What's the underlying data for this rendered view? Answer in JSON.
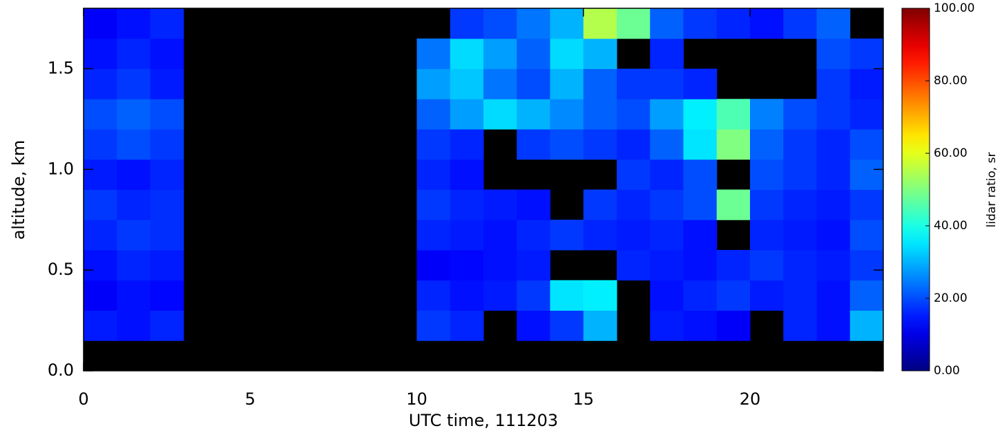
{
  "chart_data": {
    "type": "heatmap",
    "xlabel": "UTC time, 111203",
    "ylabel": "altitude, km",
    "colorbar_label": "lidar ratio, sr",
    "colormap": "jet",
    "missing_color": "#000000",
    "xbins": [
      0,
      1,
      2,
      3,
      4,
      5,
      6,
      7,
      8,
      9,
      10,
      11,
      12,
      13,
      14,
      15,
      16,
      17,
      18,
      19,
      20,
      21,
      22,
      23,
      24
    ],
    "ybins": [
      0,
      0.15,
      0.3,
      0.45,
      0.6,
      0.75,
      0.9,
      1.05,
      1.2,
      1.35,
      1.5,
      1.65,
      1.8
    ],
    "z": [
      [
        null,
        null,
        null,
        null,
        null,
        null,
        null,
        null,
        null,
        null,
        null,
        null,
        null,
        null,
        null,
        null,
        null,
        null,
        null,
        null,
        null,
        null,
        null,
        null
      ],
      [
        15,
        14,
        16,
        null,
        null,
        null,
        null,
        null,
        null,
        null,
        18,
        16,
        null,
        14,
        18,
        30,
        null,
        15,
        14,
        12,
        null,
        16,
        14,
        30
      ],
      [
        12,
        14,
        13,
        null,
        null,
        null,
        null,
        null,
        null,
        null,
        16,
        14,
        15,
        18,
        35,
        36,
        null,
        14,
        16,
        18,
        15,
        16,
        14,
        22
      ],
      [
        14,
        16,
        15,
        null,
        null,
        null,
        null,
        null,
        null,
        null,
        12,
        13,
        14,
        15,
        null,
        null,
        16,
        15,
        14,
        16,
        18,
        16,
        15,
        18
      ],
      [
        16,
        18,
        17,
        null,
        null,
        null,
        null,
        null,
        null,
        null,
        16,
        15,
        14,
        16,
        18,
        16,
        15,
        16,
        14,
        null,
        16,
        15,
        14,
        20
      ],
      [
        18,
        16,
        17,
        null,
        null,
        null,
        null,
        null,
        null,
        null,
        18,
        16,
        15,
        14,
        null,
        18,
        16,
        18,
        20,
        48,
        18,
        16,
        15,
        18
      ],
      [
        15,
        14,
        16,
        null,
        null,
        null,
        null,
        null,
        null,
        null,
        16,
        14,
        null,
        null,
        null,
        null,
        18,
        16,
        20,
        null,
        20,
        18,
        16,
        22
      ],
      [
        18,
        20,
        18,
        null,
        null,
        null,
        null,
        null,
        null,
        null,
        18,
        16,
        null,
        18,
        20,
        18,
        16,
        22,
        35,
        50,
        22,
        18,
        16,
        20
      ],
      [
        20,
        22,
        20,
        null,
        null,
        null,
        null,
        null,
        null,
        null,
        22,
        28,
        34,
        30,
        26,
        22,
        20,
        28,
        36,
        45,
        25,
        20,
        18,
        16
      ],
      [
        16,
        18,
        15,
        null,
        null,
        null,
        null,
        null,
        null,
        null,
        28,
        32,
        24,
        20,
        30,
        22,
        18,
        18,
        16,
        null,
        null,
        null,
        18,
        15
      ],
      [
        14,
        16,
        14,
        null,
        null,
        null,
        null,
        null,
        null,
        null,
        24,
        34,
        28,
        22,
        34,
        30,
        null,
        16,
        null,
        null,
        null,
        null,
        20,
        18
      ],
      [
        12,
        14,
        16,
        null,
        null,
        null,
        null,
        null,
        null,
        null,
        null,
        18,
        20,
        24,
        30,
        55,
        48,
        22,
        18,
        16,
        14,
        18,
        22,
        null
      ]
    ],
    "xlim": [
      0,
      24
    ],
    "xticks": [
      0,
      5,
      10,
      15,
      20
    ],
    "ylim": [
      0,
      1.8
    ],
    "yticks": [
      {
        "value": 0,
        "label": "0.0"
      },
      0.5,
      {
        "value": 1,
        "label": "1.0"
      },
      1.5
    ],
    "clim": [
      0,
      100
    ],
    "cticks": [
      {
        "value": 0,
        "label": "0.00"
      },
      {
        "value": 20,
        "label": "20.00"
      },
      {
        "value": 40,
        "label": "40.00"
      },
      {
        "value": 60,
        "label": "60.00"
      },
      {
        "value": 80,
        "label": "80.00"
      },
      {
        "value": 100,
        "label": "100.00"
      }
    ]
  }
}
